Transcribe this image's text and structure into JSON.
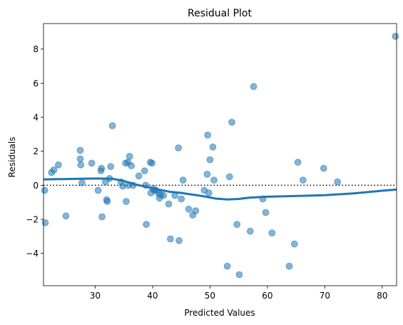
{
  "chart_data": {
    "type": "scatter",
    "title": "Residual Plot",
    "xlabel": "Predicted Values",
    "ylabel": "Residuals",
    "xlim": [
      21,
      82.5
    ],
    "ylim": [
      -5.9,
      9.5
    ],
    "xticks": [
      30,
      40,
      50,
      60,
      70,
      80
    ],
    "yticks": [
      -4,
      -2,
      0,
      2,
      4,
      6,
      8
    ],
    "grid": false,
    "reference_line": {
      "y": 0,
      "style": "dotted",
      "color": "#000000"
    },
    "point_color": "#1f77b4",
    "line_color": "#1f77b4",
    "points": [
      [
        21.2,
        -0.3
      ],
      [
        21.3,
        -2.2
      ],
      [
        22.4,
        0.75
      ],
      [
        22.8,
        0.9
      ],
      [
        23.6,
        1.2
      ],
      [
        24.9,
        -1.8
      ],
      [
        27.4,
        2.05
      ],
      [
        27.4,
        1.55
      ],
      [
        27.5,
        1.2
      ],
      [
        27.7,
        0.15
      ],
      [
        29.4,
        1.3
      ],
      [
        30.5,
        -0.3
      ],
      [
        31.0,
        0.85
      ],
      [
        31.1,
        1.0
      ],
      [
        31.2,
        -1.85
      ],
      [
        31.8,
        0.2
      ],
      [
        32.0,
        -0.85
      ],
      [
        32.1,
        -0.95
      ],
      [
        32.5,
        0.4
      ],
      [
        32.7,
        1.1
      ],
      [
        33.0,
        3.5
      ],
      [
        34.5,
        0.2
      ],
      [
        34.8,
        -0.05
      ],
      [
        35.3,
        1.3
      ],
      [
        35.4,
        -0.95
      ],
      [
        35.7,
        1.35
      ],
      [
        35.8,
        0.0
      ],
      [
        36.0,
        1.7
      ],
      [
        36.3,
        1.15
      ],
      [
        36.6,
        0.0
      ],
      [
        37.6,
        0.55
      ],
      [
        38.6,
        0.85
      ],
      [
        38.8,
        0.0
      ],
      [
        38.9,
        -2.3
      ],
      [
        39.6,
        1.35
      ],
      [
        39.7,
        -0.45
      ],
      [
        39.9,
        1.3
      ],
      [
        40.1,
        -0.2
      ],
      [
        40.3,
        -0.3
      ],
      [
        40.6,
        -0.3
      ],
      [
        41.0,
        -0.45
      ],
      [
        41.2,
        -0.75
      ],
      [
        41.4,
        -0.55
      ],
      [
        41.9,
        -0.6
      ],
      [
        42.8,
        -1.1
      ],
      [
        43.1,
        -3.15
      ],
      [
        43.9,
        -0.6
      ],
      [
        44.5,
        2.2
      ],
      [
        44.6,
        -3.25
      ],
      [
        45.0,
        -0.8
      ],
      [
        45.3,
        0.3
      ],
      [
        46.3,
        -1.4
      ],
      [
        47.0,
        -1.75
      ],
      [
        47.5,
        -1.5
      ],
      [
        49.0,
        -0.3
      ],
      [
        49.5,
        0.65
      ],
      [
        49.6,
        2.95
      ],
      [
        49.8,
        -0.45
      ],
      [
        50.0,
        1.5
      ],
      [
        50.5,
        2.25
      ],
      [
        50.7,
        0.3
      ],
      [
        53.0,
        -4.75
      ],
      [
        53.4,
        0.5
      ],
      [
        53.8,
        3.7
      ],
      [
        54.7,
        -2.3
      ],
      [
        55.1,
        -5.25
      ],
      [
        57.0,
        -2.7
      ],
      [
        57.6,
        5.8
      ],
      [
        59.2,
        -0.8
      ],
      [
        59.7,
        -1.6
      ],
      [
        60.8,
        -2.8
      ],
      [
        63.8,
        -4.75
      ],
      [
        64.7,
        -3.45
      ],
      [
        65.3,
        1.35
      ],
      [
        66.2,
        0.3
      ],
      [
        69.8,
        1.0
      ],
      [
        72.2,
        0.2
      ],
      [
        82.3,
        8.75
      ]
    ],
    "lowess": [
      [
        21.0,
        0.35
      ],
      [
        25.0,
        0.37
      ],
      [
        30.0,
        0.4
      ],
      [
        33.0,
        0.38
      ],
      [
        35.0,
        0.25
      ],
      [
        37.0,
        0.05
      ],
      [
        39.0,
        -0.1
      ],
      [
        41.0,
        -0.25
      ],
      [
        43.0,
        -0.38
      ],
      [
        45.0,
        -0.45
      ],
      [
        47.0,
        -0.55
      ],
      [
        49.0,
        -0.65
      ],
      [
        51.0,
        -0.78
      ],
      [
        53.0,
        -0.83
      ],
      [
        55.0,
        -0.8
      ],
      [
        57.0,
        -0.72
      ],
      [
        60.0,
        -0.67
      ],
      [
        65.0,
        -0.63
      ],
      [
        70.0,
        -0.58
      ],
      [
        75.0,
        -0.48
      ],
      [
        80.0,
        -0.32
      ],
      [
        82.5,
        -0.25
      ]
    ]
  }
}
